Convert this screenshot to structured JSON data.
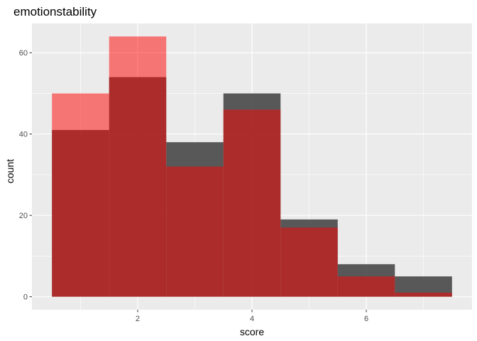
{
  "chart_data": {
    "type": "bar",
    "title": "emotionstability",
    "xlabel": "score",
    "ylabel": "count",
    "categories": [
      1,
      2,
      3,
      4,
      5,
      6,
      7
    ],
    "bin_width": 1,
    "xlim": [
      0.15,
      7.85
    ],
    "ylim": [
      -3.2,
      67.2
    ],
    "xticks": [
      2,
      4,
      6
    ],
    "yticks": [
      0,
      20,
      40,
      60
    ],
    "grid": true,
    "legend": "none",
    "series": [
      {
        "values": [
          41,
          54,
          38,
          50,
          19,
          8,
          5
        ],
        "color": "#333333",
        "opacity": 0.8
      },
      {
        "values": [
          50,
          64,
          32,
          46,
          17,
          5,
          1
        ],
        "color": "#ff0000",
        "opacity": 0.5
      }
    ],
    "panel_background": "#ebebeb",
    "grid_color": "#ffffff"
  }
}
